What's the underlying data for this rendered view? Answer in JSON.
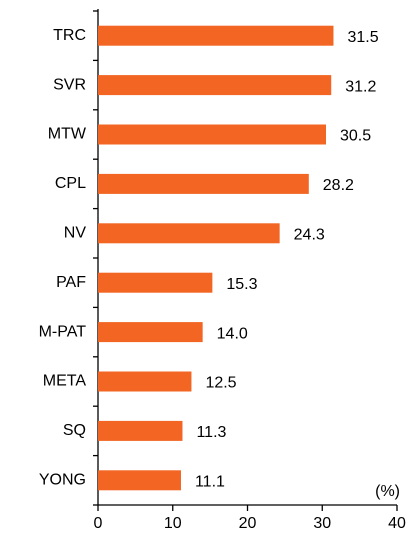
{
  "chart_data": {
    "type": "bar",
    "orientation": "horizontal",
    "categories": [
      "TRC",
      "SVR",
      "MTW",
      "CPL",
      "NV",
      "PAF",
      "M-PAT",
      "META",
      "SQ",
      "YONG"
    ],
    "values": [
      31.5,
      31.2,
      30.5,
      28.2,
      24.3,
      15.3,
      14.0,
      12.5,
      11.3,
      11.1
    ],
    "value_labels": [
      "31.5",
      "31.2",
      "30.5",
      "28.2",
      "24.3",
      "15.3",
      "14.0",
      "12.5",
      "11.3",
      "11.1"
    ],
    "color": "#f26522",
    "xlabel": "(%)",
    "xlim": [
      0,
      40
    ],
    "xticks": [
      0,
      10,
      20,
      30,
      40
    ],
    "grid": false
  }
}
